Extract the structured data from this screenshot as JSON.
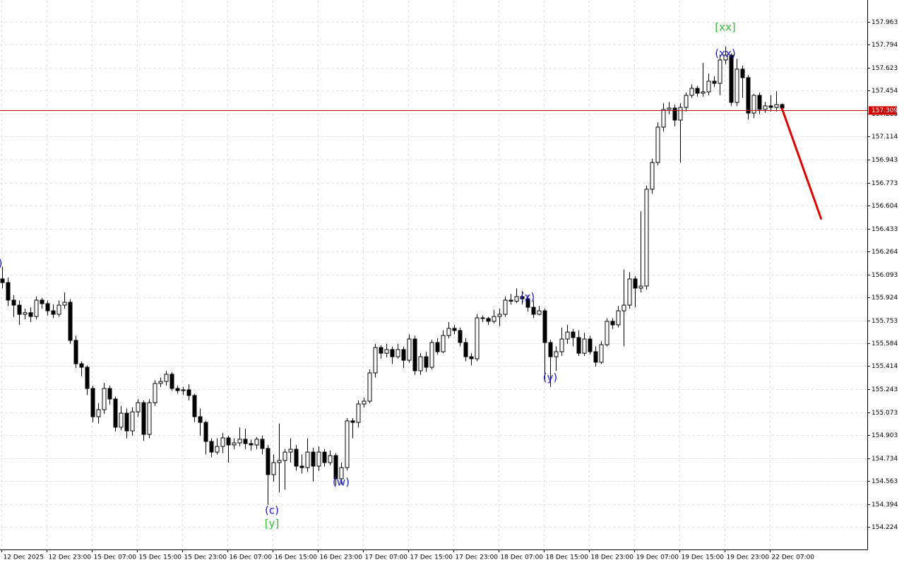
{
  "chart_data": {
    "type": "candlestick",
    "categories": [
      "12 Dec 2025",
      null,
      null,
      null,
      null,
      null,
      null,
      null,
      "12 Dec 23:00",
      null,
      null,
      null,
      null,
      null,
      null,
      null,
      "15 Dec 07:00",
      null,
      null,
      null,
      null,
      null,
      null,
      null,
      "15 Dec 15:00",
      null,
      null,
      null,
      null,
      null,
      null,
      null,
      "15 Dec 23:00",
      null,
      null,
      null,
      null,
      null,
      null,
      null,
      "16 Dec 07:00",
      null,
      null,
      null,
      null,
      null,
      null,
      null,
      "16 Dec 15:00",
      null,
      null,
      null,
      null,
      null,
      null,
      null,
      "16 Dec 23:00",
      null,
      null,
      null,
      null,
      null,
      null,
      null,
      "17 Dec 07:00",
      null,
      null,
      null,
      null,
      null,
      null,
      null,
      "17 Dec 15:00",
      null,
      null,
      null,
      null,
      null,
      null,
      null,
      "17 Dec 23:00",
      null,
      null,
      null,
      null,
      null,
      null,
      null,
      "18 Dec 07:00",
      null,
      null,
      null,
      null,
      null,
      null,
      null,
      "18 Dec 15:00",
      null,
      null,
      null,
      null,
      null,
      null,
      null,
      "18 Dec 23:00",
      null,
      null,
      null,
      null,
      null,
      null,
      null,
      "19 Dec 07:00",
      null,
      null,
      null,
      null,
      null,
      null,
      null,
      "19 Dec 15:00",
      null,
      null,
      null,
      null,
      null,
      null,
      null,
      "19 Dec 23:00",
      null,
      null,
      null,
      null,
      null,
      null,
      null,
      "22 Dec 07:00",
      null,
      null
    ],
    "ohlc": [
      [
        156.06,
        156.15,
        155.99,
        156.033
      ],
      [
        156.033,
        156.07,
        155.86,
        155.903
      ],
      [
        155.903,
        155.94,
        155.78,
        155.866
      ],
      [
        155.866,
        155.9,
        155.72,
        155.798
      ],
      [
        155.798,
        155.84,
        155.76,
        155.81
      ],
      [
        155.81,
        155.85,
        155.74,
        155.782
      ],
      [
        155.782,
        155.93,
        155.76,
        155.903
      ],
      [
        155.903,
        155.92,
        155.84,
        155.877
      ],
      [
        155.877,
        155.9,
        155.79,
        155.824
      ],
      [
        155.824,
        155.87,
        155.77,
        155.798
      ],
      [
        155.798,
        155.9,
        155.78,
        155.866
      ],
      [
        155.866,
        155.96,
        155.84,
        155.887
      ],
      [
        155.887,
        155.91,
        155.58,
        155.605
      ],
      [
        155.605,
        155.64,
        155.4,
        155.432
      ],
      [
        155.432,
        155.45,
        155.34,
        155.406
      ],
      [
        155.406,
        155.42,
        155.2,
        155.249
      ],
      [
        155.249,
        155.27,
        155.0,
        155.04
      ],
      [
        155.04,
        155.14,
        154.99,
        155.092
      ],
      [
        155.092,
        155.29,
        155.06,
        155.249
      ],
      [
        155.249,
        155.27,
        155.13,
        155.171
      ],
      [
        155.171,
        155.19,
        154.93,
        154.962
      ],
      [
        154.962,
        155.12,
        154.94,
        155.066
      ],
      [
        155.066,
        155.1,
        154.88,
        154.935
      ],
      [
        154.935,
        155.11,
        154.9,
        155.076
      ],
      [
        155.076,
        155.17,
        155.04,
        155.144
      ],
      [
        155.144,
        155.16,
        154.86,
        154.909
      ],
      [
        154.909,
        155.17,
        154.88,
        155.144
      ],
      [
        155.144,
        155.31,
        155.12,
        155.286
      ],
      [
        155.286,
        155.33,
        155.26,
        155.301
      ],
      [
        155.301,
        155.38,
        155.27,
        155.354
      ],
      [
        155.354,
        155.37,
        155.23,
        155.249
      ],
      [
        155.249,
        155.27,
        155.21,
        155.233
      ],
      [
        155.233,
        155.26,
        155.2,
        155.239
      ],
      [
        155.239,
        155.28,
        155.16,
        155.197
      ],
      [
        155.197,
        155.21,
        155.0,
        155.04
      ],
      [
        155.04,
        155.1,
        154.9,
        154.998
      ],
      [
        154.998,
        155.01,
        154.76,
        154.857
      ],
      [
        154.857,
        154.88,
        154.74,
        154.778
      ],
      [
        154.778,
        154.88,
        154.76,
        154.82
      ],
      [
        154.82,
        154.92,
        154.77,
        154.883
      ],
      [
        154.883,
        154.9,
        154.7,
        154.831
      ],
      [
        154.831,
        154.88,
        154.8,
        154.846
      ],
      [
        154.846,
        154.96,
        154.82,
        154.873
      ],
      [
        154.873,
        154.95,
        154.8,
        154.841
      ],
      [
        154.841,
        154.87,
        154.79,
        154.831
      ],
      [
        154.831,
        154.89,
        154.8,
        154.873
      ],
      [
        154.873,
        154.9,
        154.76,
        154.805
      ],
      [
        154.805,
        154.83,
        154.39,
        154.611
      ],
      [
        154.611,
        154.76,
        154.56,
        154.7
      ],
      [
        154.7,
        154.99,
        154.48,
        154.716
      ],
      [
        154.716,
        154.8,
        154.5,
        154.778
      ],
      [
        154.778,
        154.88,
        154.7,
        154.799
      ],
      [
        154.799,
        154.83,
        154.64,
        154.674
      ],
      [
        154.674,
        154.76,
        154.62,
        154.663
      ],
      [
        154.663,
        154.88,
        154.63,
        154.778
      ],
      [
        154.778,
        154.81,
        154.56,
        154.674
      ],
      [
        154.674,
        154.82,
        154.64,
        154.778
      ],
      [
        154.778,
        154.8,
        154.67,
        154.7
      ],
      [
        154.7,
        154.79,
        154.68,
        154.752
      ],
      [
        154.752,
        154.77,
        154.53,
        154.58
      ],
      [
        154.58,
        154.7,
        154.54,
        154.663
      ],
      [
        154.663,
        155.03,
        154.64,
        155.009
      ],
      [
        155.009,
        155.03,
        154.88,
        154.998
      ],
      [
        154.998,
        155.16,
        154.96,
        155.134
      ],
      [
        155.134,
        155.18,
        155.11,
        155.155
      ],
      [
        155.155,
        155.39,
        155.14,
        155.364
      ],
      [
        155.364,
        155.58,
        155.33,
        155.552
      ],
      [
        155.552,
        155.57,
        155.47,
        155.51
      ],
      [
        155.51,
        155.58,
        155.48,
        155.537
      ],
      [
        155.537,
        155.56,
        155.43,
        155.484
      ],
      [
        155.484,
        155.58,
        155.47,
        155.537
      ],
      [
        155.537,
        155.56,
        155.4,
        155.458
      ],
      [
        155.458,
        155.65,
        155.44,
        155.615
      ],
      [
        155.615,
        155.64,
        155.35,
        155.38
      ],
      [
        155.38,
        155.51,
        155.35,
        155.484
      ],
      [
        155.484,
        155.52,
        155.37,
        155.406
      ],
      [
        155.406,
        155.61,
        155.39,
        155.589
      ],
      [
        155.589,
        155.62,
        155.5,
        155.521
      ],
      [
        155.521,
        155.68,
        155.51,
        155.641
      ],
      [
        155.641,
        155.74,
        155.62,
        155.694
      ],
      [
        155.694,
        155.72,
        155.65,
        155.678
      ],
      [
        155.678,
        155.7,
        155.56,
        155.589
      ],
      [
        155.589,
        155.62,
        155.45,
        155.484
      ],
      [
        155.484,
        155.51,
        155.42,
        155.469
      ],
      [
        155.469,
        155.8,
        155.45,
        155.772
      ],
      [
        155.772,
        155.79,
        155.74,
        155.767
      ],
      [
        155.767,
        155.78,
        155.72,
        155.746
      ],
      [
        155.746,
        155.83,
        155.73,
        155.782
      ],
      [
        155.782,
        155.84,
        155.71,
        155.798
      ],
      [
        155.798,
        155.93,
        155.78,
        155.903
      ],
      [
        155.903,
        155.95,
        155.87,
        155.895
      ],
      [
        155.895,
        155.99,
        155.88,
        155.929
      ],
      [
        155.929,
        155.97,
        155.87,
        155.913
      ],
      [
        155.913,
        155.94,
        155.82,
        155.85
      ],
      [
        155.85,
        155.9,
        155.77,
        155.798
      ],
      [
        155.798,
        155.86,
        155.79,
        155.824
      ],
      [
        155.824,
        155.84,
        155.3,
        155.589
      ],
      [
        155.589,
        155.61,
        155.26,
        155.484
      ],
      [
        155.484,
        155.56,
        155.38,
        155.521
      ],
      [
        155.521,
        155.7,
        155.49,
        155.615
      ],
      [
        155.615,
        155.72,
        155.58,
        155.667
      ],
      [
        155.667,
        155.69,
        155.56,
        155.626
      ],
      [
        155.626,
        155.68,
        155.49,
        155.51
      ],
      [
        155.51,
        155.66,
        155.49,
        155.615
      ],
      [
        155.615,
        155.64,
        155.5,
        155.521
      ],
      [
        155.521,
        155.56,
        155.41,
        155.443
      ],
      [
        155.443,
        155.6,
        155.43,
        155.573
      ],
      [
        155.573,
        155.77,
        155.56,
        155.746
      ],
      [
        155.746,
        155.77,
        155.69,
        155.72
      ],
      [
        155.72,
        155.86,
        155.7,
        155.824
      ],
      [
        155.824,
        156.13,
        155.56,
        155.866
      ],
      [
        155.866,
        156.11,
        155.84,
        156.06
      ],
      [
        156.06,
        156.08,
        155.85,
        155.992
      ],
      [
        155.992,
        156.56,
        155.96,
        156.007
      ],
      [
        156.007,
        156.75,
        155.98,
        156.724
      ],
      [
        156.724,
        156.95,
        156.69,
        156.922
      ],
      [
        156.922,
        157.22,
        156.9,
        157.184
      ],
      [
        157.184,
        157.36,
        157.15,
        157.315
      ],
      [
        157.315,
        157.37,
        157.28,
        157.325
      ],
      [
        157.325,
        157.35,
        157.19,
        157.236
      ],
      [
        157.236,
        157.36,
        156.92,
        157.33
      ],
      [
        157.33,
        157.44,
        157.3,
        157.419
      ],
      [
        157.419,
        157.5,
        157.4,
        157.471
      ],
      [
        157.471,
        157.49,
        157.41,
        157.435
      ],
      [
        157.435,
        157.66,
        157.41,
        157.445
      ],
      [
        157.445,
        157.58,
        157.42,
        157.524
      ],
      [
        157.524,
        157.56,
        157.48,
        157.508
      ],
      [
        157.508,
        157.72,
        157.42,
        157.681
      ],
      [
        157.681,
        157.78,
        157.65,
        157.717
      ],
      [
        157.717,
        157.73,
        157.34,
        157.367
      ],
      [
        157.367,
        157.69,
        157.34,
        157.613
      ],
      [
        157.613,
        157.64,
        157.4,
        157.55
      ],
      [
        157.55,
        157.57,
        157.24,
        157.288
      ],
      [
        157.288,
        157.43,
        157.25,
        157.419
      ],
      [
        157.419,
        157.44,
        157.28,
        157.315
      ],
      [
        157.315,
        157.37,
        157.29,
        157.341
      ],
      [
        157.341,
        157.42,
        157.3,
        157.33
      ],
      [
        157.33,
        157.45,
        157.3,
        157.351
      ],
      [
        157.351,
        157.36,
        157.3,
        157.325
      ]
    ],
    "up_color": "#ffffff",
    "down_color": "#000000",
    "wick_color": "#000000",
    "ylim": [
      154.057,
      158.125
    ],
    "yticks": [
      157.963,
      157.794,
      157.623,
      157.454,
      157.285,
      157.114,
      156.943,
      156.773,
      156.604,
      156.433,
      156.264,
      156.093,
      155.924,
      155.753,
      155.584,
      155.414,
      155.243,
      155.073,
      154.903,
      154.734,
      154.563,
      154.394,
      154.224
    ],
    "grid": true,
    "price_line": {
      "value": 157.309,
      "color": "#cc0000"
    },
    "forecast": {
      "x": [
        138,
        145
      ],
      "values": [
        157.325,
        156.5
      ],
      "color": "#e00000"
    },
    "annotations": [
      {
        "text": ")",
        "x": -0.3,
        "y": 156.175,
        "color": "#1c1cc8"
      },
      {
        "text": "(c)",
        "x": 47.75,
        "y": 154.344,
        "color": "#1c1cc8"
      },
      {
        "text": "[y]",
        "x": 47.75,
        "y": 154.245,
        "color": "#33bb33"
      },
      {
        "text": "(w)",
        "x": 60,
        "y": 154.554,
        "color": "#1c1cc8"
      },
      {
        "text": "(x)",
        "x": 93,
        "y": 155.924,
        "color": "#1c1cc8"
      },
      {
        "text": "(y)",
        "x": 97,
        "y": 155.328,
        "color": "#1c1cc8"
      },
      {
        "text": "(xx)",
        "x": 128,
        "y": 157.728,
        "color": "#1c1cc8"
      },
      {
        "text": "[xx]",
        "x": 128,
        "y": 157.921,
        "color": "#33bb33"
      }
    ]
  }
}
